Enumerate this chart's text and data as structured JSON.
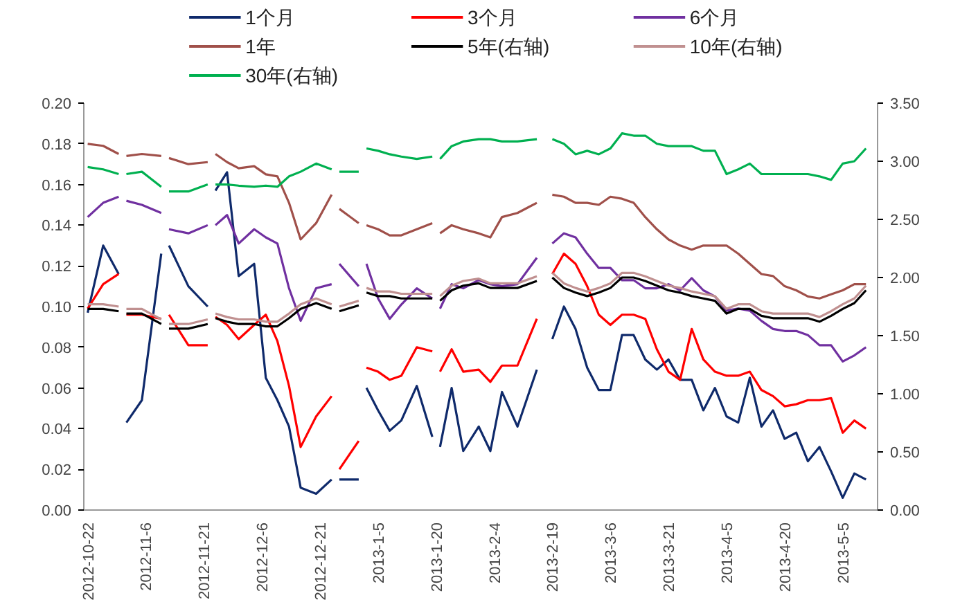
{
  "chart_data": {
    "type": "line",
    "x": [
      "2012-10-22",
      "2012-10-26",
      "2012-10-30",
      "2012-10-31",
      "2012-11-01",
      "2012-11-05",
      "2012-11-10",
      "2012-11-11",
      "2012-11-12",
      "2012-11-17",
      "2012-11-22",
      "2012-11-23",
      "2012-11-24",
      "2012-11-27",
      "2012-11-30",
      "2012-12-04",
      "2012-12-07",
      "2012-12-10",
      "2012-12-13",
      "2012-12-16",
      "2012-12-20",
      "2012-12-24",
      "2012-12-25",
      "2012-12-26",
      "2012-12-31",
      "2013-01-01",
      "2013-01-02",
      "2013-01-05",
      "2013-01-08",
      "2013-01-11",
      "2013-01-15",
      "2013-01-19",
      "2013-01-20",
      "2013-01-21",
      "2013-01-24",
      "2013-01-27",
      "2013-01-31",
      "2013-02-03",
      "2013-02-06",
      "2013-02-10",
      "2013-02-15",
      "2013-02-17",
      "2013-02-19",
      "2013-02-22",
      "2013-02-25",
      "2013-02-28",
      "2013-03-03",
      "2013-03-06",
      "2013-03-09",
      "2013-03-12",
      "2013-03-15",
      "2013-03-18",
      "2013-03-21",
      "2013-03-24",
      "2013-03-27",
      "2013-03-30",
      "2013-04-02",
      "2013-04-05",
      "2013-04-08",
      "2013-04-11",
      "2013-04-14",
      "2013-04-17",
      "2013-04-20",
      "2013-04-23",
      "2013-04-26",
      "2013-04-29",
      "2013-05-02",
      "2013-05-05",
      "2013-05-08",
      "2013-05-11"
    ],
    "xlim": [
      "2012-10-21",
      "2013-05-14"
    ],
    "xticks": [
      {
        "value": "2012-10-22",
        "label": "2012-10-22"
      },
      {
        "value": "2012-11-06",
        "label": "2012-11-6"
      },
      {
        "value": "2012-11-21",
        "label": "2012-11-21"
      },
      {
        "value": "2012-12-06",
        "label": "2012-12-6"
      },
      {
        "value": "2012-12-21",
        "label": "2012-12-21"
      },
      {
        "value": "2013-01-05",
        "label": "2013-1-5"
      },
      {
        "value": "2013-01-20",
        "label": "2013-1-20"
      },
      {
        "value": "2013-02-04",
        "label": "2013-2-4"
      },
      {
        "value": "2013-02-19",
        "label": "2013-2-19"
      },
      {
        "value": "2013-03-06",
        "label": "2013-3-6"
      },
      {
        "value": "2013-03-21",
        "label": "2013-3-21"
      },
      {
        "value": "2013-04-05",
        "label": "2013-4-5"
      },
      {
        "value": "2013-04-20",
        "label": "2013-4-20"
      },
      {
        "value": "2013-05-05",
        "label": "2013-5-5"
      }
    ],
    "ylim": [
      0,
      0.2
    ],
    "yticks": [
      {
        "value": 0,
        "label": "0.00"
      },
      {
        "value": 0.02,
        "label": "0.02"
      },
      {
        "value": 0.04,
        "label": "0.04"
      },
      {
        "value": 0.06,
        "label": "0.06"
      },
      {
        "value": 0.08,
        "label": "0.08"
      },
      {
        "value": 0.1,
        "label": "0.10"
      },
      {
        "value": 0.12,
        "label": "0.12"
      },
      {
        "value": 0.14,
        "label": "0.14"
      },
      {
        "value": 0.16,
        "label": "0.16"
      },
      {
        "value": 0.18,
        "label": "0.18"
      },
      {
        "value": 0.2,
        "label": "0.20"
      }
    ],
    "y2lim": [
      0,
      3.5
    ],
    "y2ticks": [
      {
        "value": 0,
        "label": "0.00"
      },
      {
        "value": 0.5,
        "label": "0.50"
      },
      {
        "value": 1,
        "label": "1.00"
      },
      {
        "value": 1.5,
        "label": "1.50"
      },
      {
        "value": 2,
        "label": "2.00"
      },
      {
        "value": 2.5,
        "label": "2.50"
      },
      {
        "value": 3,
        "label": "3.00"
      },
      {
        "value": 3.5,
        "label": "3.50"
      }
    ],
    "legend": "top",
    "series": [
      {
        "name": "1个月",
        "color": "#0f2a6b",
        "values": [
          0.097,
          0.13,
          0.116,
          null,
          0.043,
          0.054,
          0.126,
          null,
          0.13,
          0.11,
          0.1,
          null,
          0.157,
          0.166,
          0.115,
          0.121,
          0.065,
          0.054,
          0.041,
          0.011,
          0.008,
          0.015,
          null,
          0.015,
          0.015,
          null,
          0.06,
          0.049,
          0.039,
          0.044,
          0.061,
          0.036,
          null,
          0.031,
          0.06,
          0.029,
          0.041,
          0.029,
          0.058,
          0.041,
          0.069,
          null,
          0.084,
          0.1,
          0.089,
          0.07,
          0.059,
          0.059,
          0.086,
          0.086,
          0.074,
          0.069,
          0.074,
          0.064,
          0.064,
          0.049,
          0.06,
          0.046,
          0.043,
          0.065,
          0.041,
          0.049,
          0.035,
          0.038,
          0.024,
          0.031,
          0.019,
          0.006,
          0.018,
          0.015
        ]
      },
      {
        "name": "3个月",
        "color": "#ff0000",
        "values": [
          0.099,
          0.111,
          0.116,
          null,
          0.096,
          0.096,
          0.094,
          null,
          0.096,
          0.081,
          0.081,
          null,
          0.095,
          0.091,
          0.084,
          0.091,
          0.096,
          0.083,
          0.061,
          0.031,
          0.046,
          0.056,
          null,
          0.02,
          0.034,
          null,
          0.07,
          0.068,
          0.064,
          0.066,
          0.08,
          0.078,
          null,
          0.068,
          0.079,
          0.068,
          0.069,
          0.063,
          0.071,
          0.071,
          0.094,
          null,
          0.116,
          0.126,
          0.121,
          0.11,
          0.096,
          0.091,
          0.096,
          0.096,
          0.094,
          0.079,
          0.068,
          0.064,
          0.089,
          0.074,
          0.068,
          0.066,
          0.066,
          0.068,
          0.059,
          0.056,
          0.051,
          0.052,
          0.054,
          0.054,
          0.055,
          0.038,
          0.044,
          0.04
        ]
      },
      {
        "name": "6个月",
        "color": "#7030a0",
        "values": [
          0.144,
          0.151,
          0.154,
          null,
          0.152,
          0.15,
          0.146,
          null,
          0.138,
          0.136,
          0.14,
          null,
          0.14,
          0.145,
          0.131,
          0.138,
          0.134,
          0.131,
          0.109,
          0.093,
          0.109,
          0.111,
          null,
          0.121,
          0.11,
          null,
          0.121,
          0.104,
          0.094,
          0.101,
          0.109,
          0.104,
          null,
          0.099,
          0.111,
          0.109,
          0.113,
          0.111,
          0.11,
          0.111,
          0.124,
          null,
          0.131,
          0.136,
          0.134,
          0.126,
          0.119,
          0.119,
          0.113,
          0.113,
          0.109,
          0.109,
          0.111,
          0.108,
          0.114,
          0.108,
          0.105,
          0.098,
          0.099,
          0.098,
          0.093,
          0.089,
          0.088,
          0.088,
          0.086,
          0.081,
          0.081,
          0.073,
          0.076,
          0.08
        ]
      },
      {
        "name": "1年",
        "color": "#a0504a",
        "values": [
          0.18,
          0.179,
          0.175,
          null,
          0.174,
          0.175,
          0.174,
          null,
          0.173,
          0.17,
          0.171,
          null,
          0.175,
          0.171,
          0.168,
          0.169,
          0.165,
          0.164,
          0.151,
          0.133,
          0.141,
          0.155,
          null,
          0.148,
          0.141,
          null,
          0.14,
          0.138,
          0.135,
          0.135,
          0.138,
          0.141,
          null,
          0.136,
          0.14,
          0.138,
          0.136,
          0.134,
          0.144,
          0.146,
          0.151,
          null,
          0.155,
          0.154,
          0.151,
          0.151,
          0.15,
          0.154,
          0.153,
          0.151,
          0.144,
          0.138,
          0.133,
          0.13,
          0.128,
          0.13,
          0.13,
          0.13,
          0.126,
          0.121,
          0.116,
          0.115,
          0.11,
          0.108,
          0.105,
          0.104,
          0.106,
          0.108,
          0.111,
          0.111
        ]
      },
      {
        "name": "5年(右轴)",
        "color": "#000000",
        "axis": "y2",
        "values": [
          1.73,
          1.73,
          1.71,
          null,
          1.69,
          1.69,
          1.6,
          null,
          1.56,
          1.56,
          1.6,
          null,
          1.65,
          1.62,
          1.6,
          1.6,
          1.58,
          1.58,
          1.65,
          1.73,
          1.78,
          1.73,
          null,
          1.71,
          1.76,
          null,
          1.87,
          1.84,
          1.84,
          1.82,
          1.82,
          1.82,
          null,
          1.8,
          1.89,
          1.93,
          1.95,
          1.91,
          1.91,
          1.91,
          1.97,
          null,
          2.0,
          1.91,
          1.87,
          1.84,
          1.87,
          1.91,
          2.0,
          2.0,
          1.97,
          1.93,
          1.89,
          1.87,
          1.84,
          1.82,
          1.8,
          1.69,
          1.73,
          1.73,
          1.67,
          1.65,
          1.65,
          1.65,
          1.65,
          1.62,
          1.67,
          1.73,
          1.78,
          1.89
        ]
      },
      {
        "name": "10年(右轴)",
        "color": "#c09090",
        "axis": "y2",
        "values": [
          1.77,
          1.77,
          1.75,
          null,
          1.73,
          1.73,
          1.64,
          null,
          1.6,
          1.6,
          1.64,
          null,
          1.69,
          1.66,
          1.64,
          1.64,
          1.62,
          1.62,
          1.69,
          1.77,
          1.82,
          1.77,
          null,
          1.75,
          1.8,
          null,
          1.91,
          1.88,
          1.88,
          1.86,
          1.86,
          1.86,
          null,
          1.84,
          1.93,
          1.97,
          1.99,
          1.95,
          1.95,
          1.95,
          2.01,
          null,
          2.04,
          1.95,
          1.91,
          1.88,
          1.91,
          1.95,
          2.04,
          2.04,
          2.01,
          1.97,
          1.93,
          1.91,
          1.88,
          1.86,
          1.84,
          1.73,
          1.77,
          1.77,
          1.71,
          1.69,
          1.69,
          1.69,
          1.69,
          1.66,
          1.71,
          1.77,
          1.82,
          1.93
        ]
      },
      {
        "name": "30年(右轴)",
        "color": "#00b050",
        "axis": "y2",
        "values": [
          2.95,
          2.93,
          2.89,
          null,
          2.89,
          2.91,
          2.78,
          null,
          2.74,
          2.74,
          2.8,
          null,
          2.8,
          2.8,
          2.79,
          2.78,
          2.79,
          2.78,
          2.87,
          2.91,
          2.98,
          2.93,
          null,
          2.91,
          2.91,
          null,
          3.11,
          3.09,
          3.06,
          3.04,
          3.02,
          3.04,
          null,
          3.02,
          3.13,
          3.17,
          3.19,
          3.19,
          3.17,
          3.17,
          3.19,
          null,
          3.19,
          3.15,
          3.06,
          3.09,
          3.06,
          3.11,
          3.24,
          3.22,
          3.22,
          3.15,
          3.13,
          3.13,
          3.13,
          3.09,
          3.09,
          2.89,
          2.93,
          2.98,
          2.89,
          2.89,
          2.89,
          2.89,
          2.89,
          2.87,
          2.84,
          2.98,
          3.0,
          3.11
        ]
      }
    ]
  }
}
